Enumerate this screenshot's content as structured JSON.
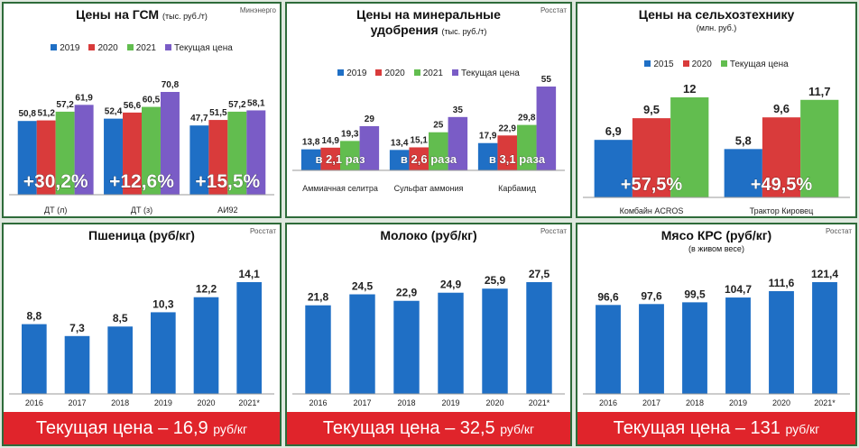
{
  "chart_data": [
    {
      "type": "bar",
      "title": "Цены на ГСМ",
      "subtitle": "(тыс. руб./т)",
      "source": "Минэнерго",
      "categories": [
        "ДТ (л)",
        "ДТ (з)",
        "АИ92"
      ],
      "series": [
        {
          "name": "2019",
          "color": "#1f6fc5",
          "values": [
            50.8,
            52.4,
            47.7
          ],
          "value_labels": [
            "50,8",
            "52,4",
            "47,7"
          ]
        },
        {
          "name": "2020",
          "color": "#d93b3b",
          "values": [
            51.2,
            56.6,
            51.5
          ],
          "value_labels": [
            "51,2",
            "56,6",
            "51,5"
          ]
        },
        {
          "name": "2021",
          "color": "#62bd4f",
          "values": [
            57.2,
            60.5,
            57.2
          ],
          "value_labels": [
            "57,2",
            "60,5",
            "57,2"
          ]
        },
        {
          "name": "Текущая цена",
          "color": "#7a5cc6",
          "values": [
            61.9,
            70.8,
            58.1
          ],
          "value_labels": [
            "61,9",
            "70,8",
            "58,1"
          ]
        }
      ],
      "annotations": [
        "+30,2%",
        "+12,6%",
        "+15,5%"
      ]
    },
    {
      "type": "bar",
      "title": "Цены на минеральные удобрения",
      "subtitle": "(тыс. руб./т)",
      "source": "Росстат",
      "categories": [
        "Аммиачная селитра",
        "Сульфат аммония",
        "Карбамид"
      ],
      "series": [
        {
          "name": "2019",
          "color": "#1f6fc5",
          "values": [
            13.8,
            13.4,
            17.9
          ],
          "value_labels": [
            "13,8",
            "13,4",
            "17,9"
          ]
        },
        {
          "name": "2020",
          "color": "#d93b3b",
          "values": [
            14.9,
            15.1,
            22.9
          ],
          "value_labels": [
            "14,9",
            "15,1",
            "22,9"
          ]
        },
        {
          "name": "2021",
          "color": "#62bd4f",
          "values": [
            19.3,
            25,
            29.8
          ],
          "value_labels": [
            "19,3",
            "25",
            "29,8"
          ]
        },
        {
          "name": "Текущая цена",
          "color": "#7a5cc6",
          "values": [
            29,
            35,
            55
          ],
          "value_labels": [
            "29",
            "35",
            "55"
          ]
        }
      ],
      "annotations": [
        "в 2,1 раз",
        "в 2,6 раза",
        "в 3,1 раза"
      ]
    },
    {
      "type": "bar",
      "title": "Цены на сельхозтехнику",
      "subtitle": "(млн. руб.)",
      "categories": [
        "Комбайн ACROS",
        "Трактор Кировец"
      ],
      "series": [
        {
          "name": "2015",
          "color": "#1f6fc5",
          "values": [
            6.9,
            5.8
          ],
          "value_labels": [
            "6,9",
            "5,8"
          ]
        },
        {
          "name": "2020",
          "color": "#d93b3b",
          "values": [
            9.5,
            9.6
          ],
          "value_labels": [
            "9,5",
            "9,6"
          ]
        },
        {
          "name": "Текущая цена",
          "color": "#62bd4f",
          "values": [
            12,
            11.7
          ],
          "value_labels": [
            "12",
            "11,7"
          ]
        }
      ],
      "annotations": [
        "+57,5%",
        "+49,5%"
      ]
    },
    {
      "type": "bar",
      "title": "Пшеница (руб/кг)",
      "source": "Росстат",
      "color": "#1f6fc5",
      "categories": [
        "2016",
        "2017",
        "2018",
        "2019",
        "2020",
        "2021*"
      ],
      "values": [
        8.8,
        7.3,
        8.5,
        10.3,
        12.2,
        14.1
      ],
      "value_labels": [
        "8,8",
        "7,3",
        "8,5",
        "10,3",
        "12,2",
        "14,1"
      ],
      "footer": {
        "text": "Текущая цена – 16,9",
        "unit": "руб/кг"
      }
    },
    {
      "type": "bar",
      "title": "Молоко (руб/кг)",
      "source": "Росстат",
      "color": "#1f6fc5",
      "categories": [
        "2016",
        "2017",
        "2018",
        "2019",
        "2020",
        "2021*"
      ],
      "values": [
        21.8,
        24.5,
        22.9,
        24.9,
        25.9,
        27.5
      ],
      "value_labels": [
        "21,8",
        "24,5",
        "22,9",
        "24,9",
        "25,9",
        "27,5"
      ],
      "footer": {
        "text": "Текущая цена – 32,5",
        "unit": "руб/кг"
      }
    },
    {
      "type": "bar",
      "title": "Мясо КРС (руб/кг)",
      "subtitle": "(в живом весе)",
      "source": "Росстат",
      "color": "#1f6fc5",
      "categories": [
        "2016",
        "2017",
        "2018",
        "2019",
        "2020",
        "2021*"
      ],
      "values": [
        96.6,
        97.6,
        99.5,
        104.7,
        111.6,
        121.4
      ],
      "value_labels": [
        "96,6",
        "97,6",
        "99,5",
        "104,7",
        "111,6",
        "121,4"
      ],
      "footer": {
        "text": "Текущая цена – 131",
        "unit": "руб/кг"
      }
    }
  ]
}
